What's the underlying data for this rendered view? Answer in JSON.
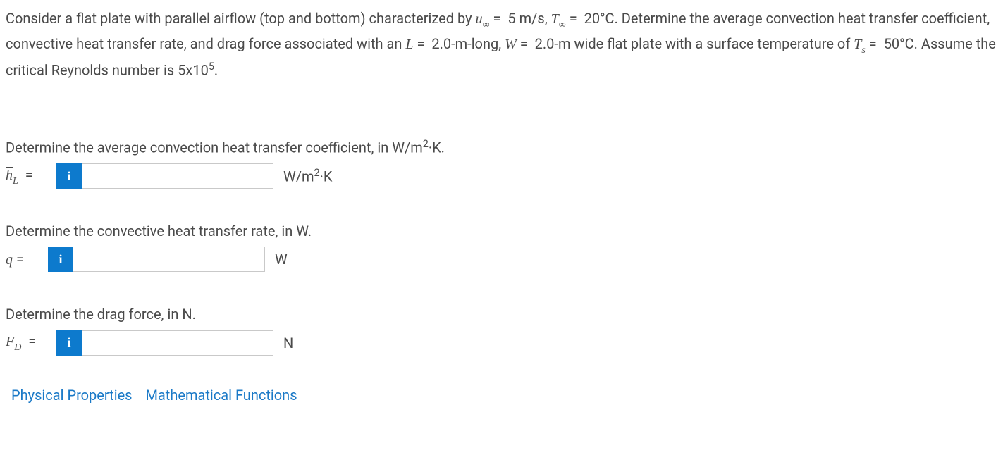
{
  "problem": {
    "text_html": "Consider a flat plate with parallel airflow (top and bottom) characterized by <span class='mi'>u</span><span class='mr sub'>&infin;</span>&nbsp;=&nbsp;&nbsp;5 m/s, <span class='mi'>T</span><span class='mr sub'>&infin;</span>&nbsp;=&nbsp;&nbsp;20&deg;C. Determine the average convection heat transfer coefficient, convective heat transfer rate, and drag force associated with an <span class='mi'>L</span>&nbsp;=&nbsp;&nbsp;2.0-m-long, <span class='mi'>W</span>&nbsp;=&nbsp;&nbsp;2.0-m wide flat plate with a surface temperature of <span class='mi'>T</span><span class='mi sub'>s</span>&nbsp;=&nbsp;&nbsp;50&deg;C. Assume the critical Reynolds number is 5x10<span class='sup'>5</span>."
  },
  "q1": {
    "prompt_html": "Determine the average convection heat transfer coefficient, in W/m<span class='sup'>2</span>&middot;K.",
    "var_html": "<span class='overline'><span class='mi'>h</span></span><span class='mi sub'>L</span>&nbsp;&nbsp;=",
    "value": "",
    "unit_html": "W/m<span class='sup'>2</span>&middot;K"
  },
  "q2": {
    "prompt_html": "Determine the convective heat transfer rate, in W.",
    "var_html": "<span class='mi'>q</span>&nbsp;=",
    "value": "",
    "unit_html": "W"
  },
  "q3": {
    "prompt_html": "Determine the drag force, in N.",
    "var_html": "<span class='mi'>F</span><span class='mi sub'>D</span>&nbsp;&nbsp;=",
    "value": "",
    "unit_html": "N"
  },
  "links": {
    "phys": "Physical Properties",
    "math": "Mathematical Functions"
  },
  "info_glyph": "i"
}
